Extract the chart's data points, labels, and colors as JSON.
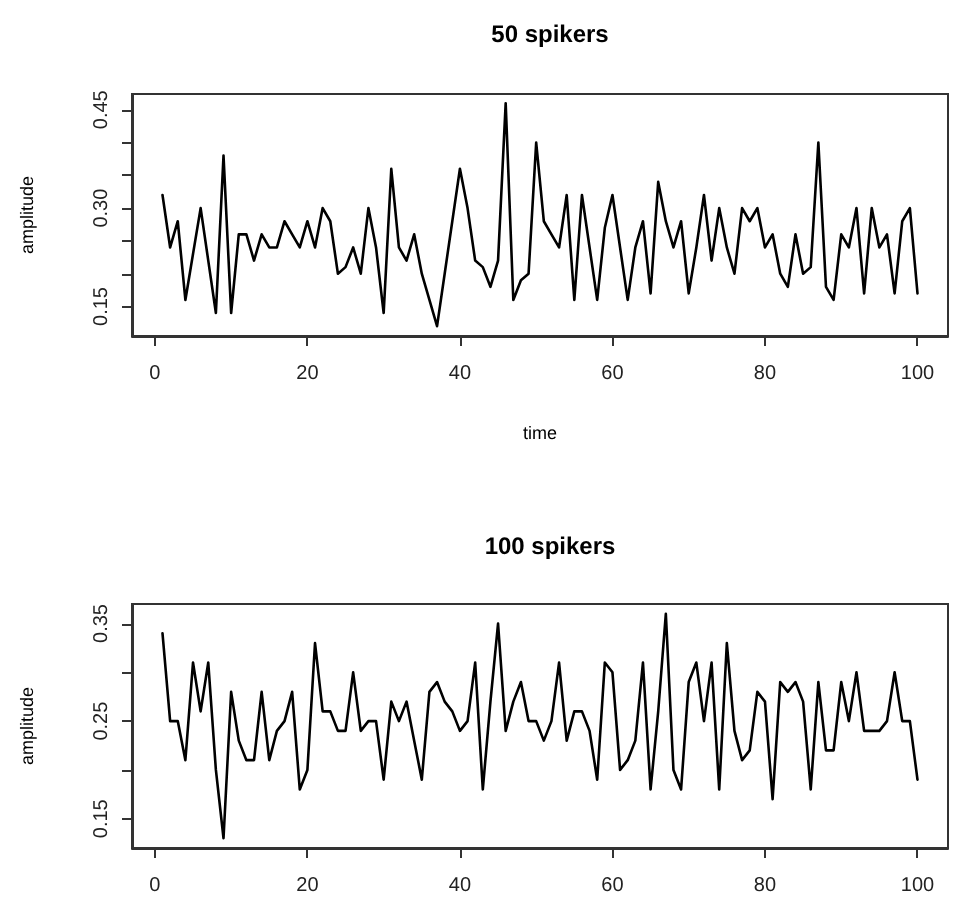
{
  "chart_data": [
    {
      "type": "line",
      "title": "50 spikers",
      "xlabel": "time",
      "ylabel": "amplitude",
      "grid": false,
      "marker": "none",
      "line_style": "solid",
      "x": [
        1,
        2,
        3,
        4,
        5,
        6,
        7,
        8,
        9,
        10,
        11,
        12,
        13,
        14,
        15,
        16,
        17,
        18,
        19,
        20,
        21,
        22,
        23,
        24,
        25,
        26,
        27,
        28,
        29,
        30,
        31,
        32,
        33,
        34,
        35,
        36,
        37,
        38,
        39,
        40,
        41,
        42,
        43,
        44,
        45,
        46,
        47,
        48,
        49,
        50,
        51,
        52,
        53,
        54,
        55,
        56,
        57,
        58,
        59,
        60,
        61,
        62,
        63,
        64,
        65,
        66,
        67,
        68,
        69,
        70,
        71,
        72,
        73,
        74,
        75,
        76,
        77,
        78,
        79,
        80,
        81,
        82,
        83,
        84,
        85,
        86,
        87,
        88,
        89,
        90,
        91,
        92,
        93,
        94,
        95,
        96,
        97,
        98,
        99,
        100
      ],
      "series": [
        {
          "color": "#000000",
          "values": [
            0.32,
            0.24,
            0.28,
            0.16,
            0.23,
            0.3,
            0.22,
            0.14,
            0.38,
            0.14,
            0.26,
            0.26,
            0.22,
            0.26,
            0.24,
            0.24,
            0.28,
            0.26,
            0.24,
            0.28,
            0.24,
            0.3,
            0.28,
            0.2,
            0.21,
            0.24,
            0.2,
            0.3,
            0.24,
            0.14,
            0.36,
            0.24,
            0.22,
            0.26,
            0.2,
            0.16,
            0.12,
            0.2,
            0.28,
            0.36,
            0.3,
            0.22,
            0.21,
            0.18,
            0.22,
            0.46,
            0.16,
            0.19,
            0.2,
            0.4,
            0.28,
            0.26,
            0.24,
            0.32,
            0.16,
            0.32,
            0.24,
            0.16,
            0.27,
            0.32,
            0.24,
            0.16,
            0.24,
            0.28,
            0.17,
            0.34,
            0.28,
            0.24,
            0.28,
            0.17,
            0.24,
            0.32,
            0.22,
            0.3,
            0.24,
            0.2,
            0.3,
            0.28,
            0.3,
            0.24,
            0.26,
            0.2,
            0.18,
            0.26,
            0.2,
            0.21,
            0.4,
            0.18,
            0.16,
            0.26,
            0.24,
            0.3,
            0.17,
            0.3,
            0.24,
            0.26,
            0.17,
            0.28,
            0.3,
            0.17
          ]
        }
      ],
      "xlim": [
        -3,
        104
      ],
      "xticks": [
        0,
        20,
        40,
        60,
        80,
        100
      ],
      "ylim": [
        0.105,
        0.474
      ],
      "yticks": [
        0.15,
        {
          "value": 0.2,
          "label": null
        },
        {
          "value": 0.25,
          "label": null
        },
        {
          "value": 0.3,
          "label": "0.30"
        },
        {
          "value": 0.35,
          "label": null
        },
        {
          "value": 0.4,
          "label": null
        },
        0.45
      ]
    },
    {
      "type": "line",
      "title": "100 spikers",
      "ylabel": "amplitude",
      "grid": false,
      "marker": "none",
      "line_style": "solid",
      "x": [
        1,
        2,
        3,
        4,
        5,
        6,
        7,
        8,
        9,
        10,
        11,
        12,
        13,
        14,
        15,
        16,
        17,
        18,
        19,
        20,
        21,
        22,
        23,
        24,
        25,
        26,
        27,
        28,
        29,
        30,
        31,
        32,
        33,
        34,
        35,
        36,
        37,
        38,
        39,
        40,
        41,
        42,
        43,
        44,
        45,
        46,
        47,
        48,
        49,
        50,
        51,
        52,
        53,
        54,
        55,
        56,
        57,
        58,
        59,
        60,
        61,
        62,
        63,
        64,
        65,
        66,
        67,
        68,
        69,
        70,
        71,
        72,
        73,
        74,
        75,
        76,
        77,
        78,
        79,
        80,
        81,
        82,
        83,
        84,
        85,
        86,
        87,
        88,
        89,
        90,
        91,
        92,
        93,
        94,
        95,
        96,
        97,
        98,
        99,
        100
      ],
      "series": [
        {
          "color": "#000000",
          "values": [
            0.34,
            0.25,
            0.25,
            0.21,
            0.31,
            0.26,
            0.31,
            0.2,
            0.13,
            0.28,
            0.23,
            0.21,
            0.21,
            0.28,
            0.21,
            0.24,
            0.25,
            0.28,
            0.18,
            0.2,
            0.33,
            0.26,
            0.26,
            0.24,
            0.24,
            0.3,
            0.24,
            0.25,
            0.25,
            0.19,
            0.27,
            0.25,
            0.27,
            0.23,
            0.19,
            0.28,
            0.29,
            0.27,
            0.26,
            0.24,
            0.25,
            0.31,
            0.18,
            0.27,
            0.35,
            0.24,
            0.27,
            0.29,
            0.25,
            0.25,
            0.23,
            0.25,
            0.31,
            0.23,
            0.26,
            0.26,
            0.24,
            0.19,
            0.31,
            0.3,
            0.2,
            0.21,
            0.23,
            0.31,
            0.18,
            0.26,
            0.36,
            0.2,
            0.18,
            0.29,
            0.31,
            0.25,
            0.31,
            0.18,
            0.33,
            0.24,
            0.21,
            0.22,
            0.28,
            0.27,
            0.17,
            0.29,
            0.28,
            0.29,
            0.27,
            0.18,
            0.29,
            0.22,
            0.22,
            0.29,
            0.25,
            0.3,
            0.24,
            0.24,
            0.24,
            0.25,
            0.3,
            0.25,
            0.25,
            0.19
          ]
        }
      ],
      "xlim": [
        -3,
        104
      ],
      "xticks": [
        0,
        20,
        40,
        60,
        80,
        100
      ],
      "ylim": [
        0.12,
        0.37
      ],
      "yticks": [
        0.15,
        {
          "value": 0.2,
          "label": null
        },
        0.25,
        {
          "value": 0.3,
          "label": null
        },
        0.35
      ]
    }
  ]
}
